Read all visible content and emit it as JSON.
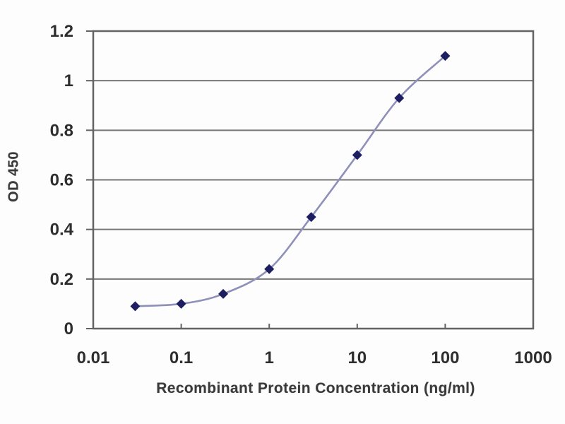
{
  "chart_data": {
    "type": "line",
    "title": "",
    "xlabel": "Recombinant Protein Concentration (ng/ml)",
    "ylabel": "OD 450",
    "x_scale": "log",
    "y_scale": "linear",
    "xlim": [
      0.01,
      1000
    ],
    "ylim": [
      0,
      1.2
    ],
    "grid": "horizontal",
    "legend": "none",
    "marker": "diamond",
    "x_ticks": [
      0.01,
      0.1,
      1,
      10,
      100,
      1000
    ],
    "x_tick_labels": [
      "0.01",
      "0.1",
      "1",
      "10",
      "100",
      "1000"
    ],
    "y_ticks": [
      0,
      0.2,
      0.4,
      0.6,
      0.8,
      1,
      1.2
    ],
    "y_tick_labels": [
      "0",
      "0.2",
      "0.4",
      "0.6",
      "0.8",
      "1",
      "1.2"
    ],
    "series": [
      {
        "name": "OD 450",
        "x": [
          0.03,
          0.1,
          0.3,
          1,
          3,
          10,
          30,
          100
        ],
        "y": [
          0.09,
          0.1,
          0.14,
          0.24,
          0.45,
          0.7,
          0.93,
          1.1
        ]
      }
    ],
    "colors": {
      "marker": "#1d1d62",
      "line": "#8e90ba",
      "gridline": "#767676",
      "axis": "#636363",
      "text": "#2e2e2e",
      "background": "#fdfdfd"
    }
  }
}
